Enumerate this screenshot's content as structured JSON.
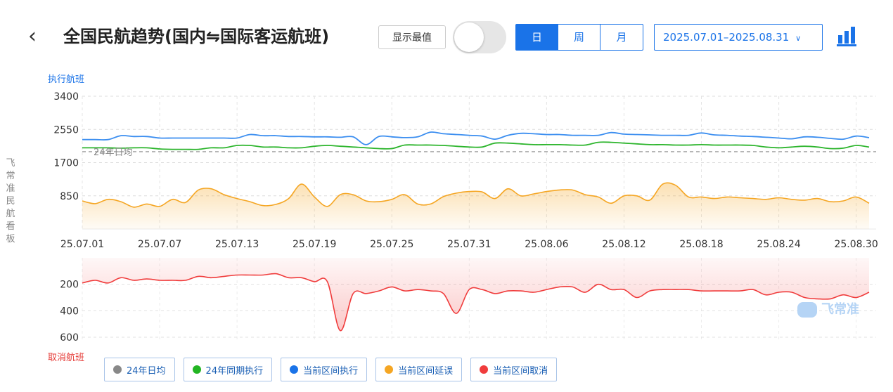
{
  "header": {
    "back_icon": "chevron-left-icon",
    "title": "全国民航趋势(国内⇋国际客运航班)",
    "show_max_label": "显示最值",
    "toggle_on": false,
    "tabs": [
      {
        "label": "日",
        "active": true
      },
      {
        "label": "周",
        "active": false
      },
      {
        "label": "月",
        "active": false
      }
    ],
    "date_range": "2025.07.01–2025.08.31",
    "dropdown_icon": "chevron-down-icon",
    "chart_type_icon": "bar-chart-icon"
  },
  "sidebar_label": "飞常准民航看板",
  "watermark": "飞常准",
  "colors": {
    "accent": "#1a73e8",
    "avg": "#888888",
    "last_year": "#2db52d",
    "exec": "#3b8ef0",
    "delay": "#f5a623",
    "cancel": "#f03c3c"
  },
  "legend": [
    {
      "label": "24年日均",
      "color": "#888888"
    },
    {
      "label": "24年同期执行",
      "color": "#22b522"
    },
    {
      "label": "当前区间执行",
      "color": "#1a73e8"
    },
    {
      "label": "当前区间延误",
      "color": "#f5a623"
    },
    {
      "label": "当前区间取消",
      "color": "#f03c3c"
    }
  ],
  "chart_data": [
    {
      "type": "line",
      "ylabel": "执行航班",
      "ylim": [
        0,
        3400
      ],
      "yticks": [
        850,
        1700,
        2550,
        3400
      ],
      "xticks": [
        "25.07.01",
        "25.07.07",
        "25.07.13",
        "25.07.19",
        "25.07.25",
        "25.07.31",
        "25.08.06",
        "25.08.12",
        "25.08.18",
        "25.08.24",
        "25.08.30"
      ],
      "x": [
        "25.07.01",
        "25.07.02",
        "25.07.03",
        "25.07.04",
        "25.07.05",
        "25.07.06",
        "25.07.07",
        "25.07.08",
        "25.07.09",
        "25.07.10",
        "25.07.11",
        "25.07.12",
        "25.07.13",
        "25.07.14",
        "25.07.15",
        "25.07.16",
        "25.07.17",
        "25.07.18",
        "25.07.19",
        "25.07.20",
        "25.07.21",
        "25.07.22",
        "25.07.23",
        "25.07.24",
        "25.07.25",
        "25.07.26",
        "25.07.27",
        "25.07.28",
        "25.07.29",
        "25.07.30",
        "25.07.31",
        "25.08.01",
        "25.08.02",
        "25.08.03",
        "25.08.04",
        "25.08.05",
        "25.08.06",
        "25.08.07",
        "25.08.08",
        "25.08.09",
        "25.08.10",
        "25.08.11",
        "25.08.12",
        "25.08.13",
        "25.08.14",
        "25.08.15",
        "25.08.16",
        "25.08.17",
        "25.08.18",
        "25.08.19",
        "25.08.20",
        "25.08.21",
        "25.08.22",
        "25.08.23",
        "25.08.24",
        "25.08.25",
        "25.08.26",
        "25.08.27",
        "25.08.28",
        "25.08.29",
        "25.08.30",
        "25.08.31"
      ],
      "reference_line": {
        "name": "24年日均",
        "value": 1980
      },
      "series": [
        {
          "name": "当前区间执行",
          "values": [
            2290,
            2290,
            2290,
            2390,
            2370,
            2370,
            2330,
            2330,
            2330,
            2330,
            2330,
            2330,
            2330,
            2420,
            2390,
            2390,
            2370,
            2370,
            2360,
            2360,
            2350,
            2360,
            2160,
            2370,
            2360,
            2340,
            2360,
            2480,
            2440,
            2420,
            2400,
            2380,
            2300,
            2400,
            2450,
            2440,
            2420,
            2420,
            2400,
            2400,
            2400,
            2470,
            2430,
            2420,
            2410,
            2400,
            2400,
            2400,
            2460,
            2410,
            2400,
            2380,
            2370,
            2350,
            2330,
            2310,
            2360,
            2350,
            2320,
            2300,
            2380,
            2340
          ]
        },
        {
          "name": "24年同期执行",
          "values": [
            2080,
            2080,
            2080,
            2070,
            2080,
            2080,
            2050,
            2040,
            2040,
            2040,
            2080,
            2080,
            2140,
            2140,
            2100,
            2100,
            2080,
            2080,
            2120,
            2140,
            2120,
            2100,
            2080,
            2060,
            2060,
            2150,
            2150,
            2150,
            2140,
            2120,
            2100,
            2100,
            2200,
            2200,
            2180,
            2160,
            2160,
            2160,
            2150,
            2150,
            2220,
            2220,
            2200,
            2180,
            2160,
            2160,
            2150,
            2150,
            2160,
            2150,
            2150,
            2150,
            2140,
            2100,
            2080,
            2100,
            2120,
            2100,
            2060,
            2070,
            2140,
            2100
          ]
        },
        {
          "name": "当前区间延误",
          "values": [
            720,
            650,
            760,
            700,
            560,
            640,
            580,
            760,
            680,
            1000,
            1030,
            880,
            780,
            700,
            600,
            630,
            780,
            1150,
            820,
            580,
            880,
            880,
            720,
            700,
            760,
            880,
            640,
            640,
            830,
            920,
            960,
            950,
            780,
            1030,
            850,
            900,
            960,
            1000,
            1000,
            880,
            820,
            660,
            850,
            850,
            740,
            1150,
            1120,
            820,
            820,
            780,
            820,
            800,
            780,
            760,
            800,
            760,
            740,
            780,
            700,
            720,
            820,
            660
          ]
        }
      ]
    },
    {
      "type": "line",
      "ylabel": "取消航班",
      "ylim": [
        0,
        600
      ],
      "y_inverted": true,
      "yticks": [
        200,
        400,
        600
      ],
      "x": [
        "25.07.01",
        "25.07.02",
        "25.07.03",
        "25.07.04",
        "25.07.05",
        "25.07.06",
        "25.07.07",
        "25.07.08",
        "25.07.09",
        "25.07.10",
        "25.07.11",
        "25.07.12",
        "25.07.13",
        "25.07.14",
        "25.07.15",
        "25.07.16",
        "25.07.17",
        "25.07.18",
        "25.07.19",
        "25.07.20",
        "25.07.21",
        "25.07.22",
        "25.07.23",
        "25.07.24",
        "25.07.25",
        "25.07.26",
        "25.07.27",
        "25.07.28",
        "25.07.29",
        "25.07.30",
        "25.07.31",
        "25.08.01",
        "25.08.02",
        "25.08.03",
        "25.08.04",
        "25.08.05",
        "25.08.06",
        "25.08.07",
        "25.08.08",
        "25.08.09",
        "25.08.10",
        "25.08.11",
        "25.08.12",
        "25.08.13",
        "25.08.14",
        "25.08.15",
        "25.08.16",
        "25.08.17",
        "25.08.18",
        "25.08.19",
        "25.08.20",
        "25.08.21",
        "25.08.22",
        "25.08.23",
        "25.08.24",
        "25.08.25",
        "25.08.26",
        "25.08.27",
        "25.08.28",
        "25.08.29",
        "25.08.30",
        "25.08.31"
      ],
      "series": [
        {
          "name": "当前区间取消",
          "values": [
            190,
            170,
            190,
            150,
            170,
            160,
            170,
            170,
            170,
            140,
            150,
            140,
            130,
            130,
            130,
            120,
            150,
            150,
            180,
            180,
            550,
            270,
            270,
            250,
            220,
            250,
            240,
            250,
            270,
            420,
            240,
            240,
            270,
            250,
            250,
            260,
            240,
            220,
            220,
            260,
            200,
            240,
            240,
            300,
            250,
            240,
            240,
            240,
            250,
            250,
            250,
            250,
            240,
            280,
            260,
            260,
            300,
            310,
            310,
            280,
            300,
            260
          ]
        }
      ]
    }
  ]
}
